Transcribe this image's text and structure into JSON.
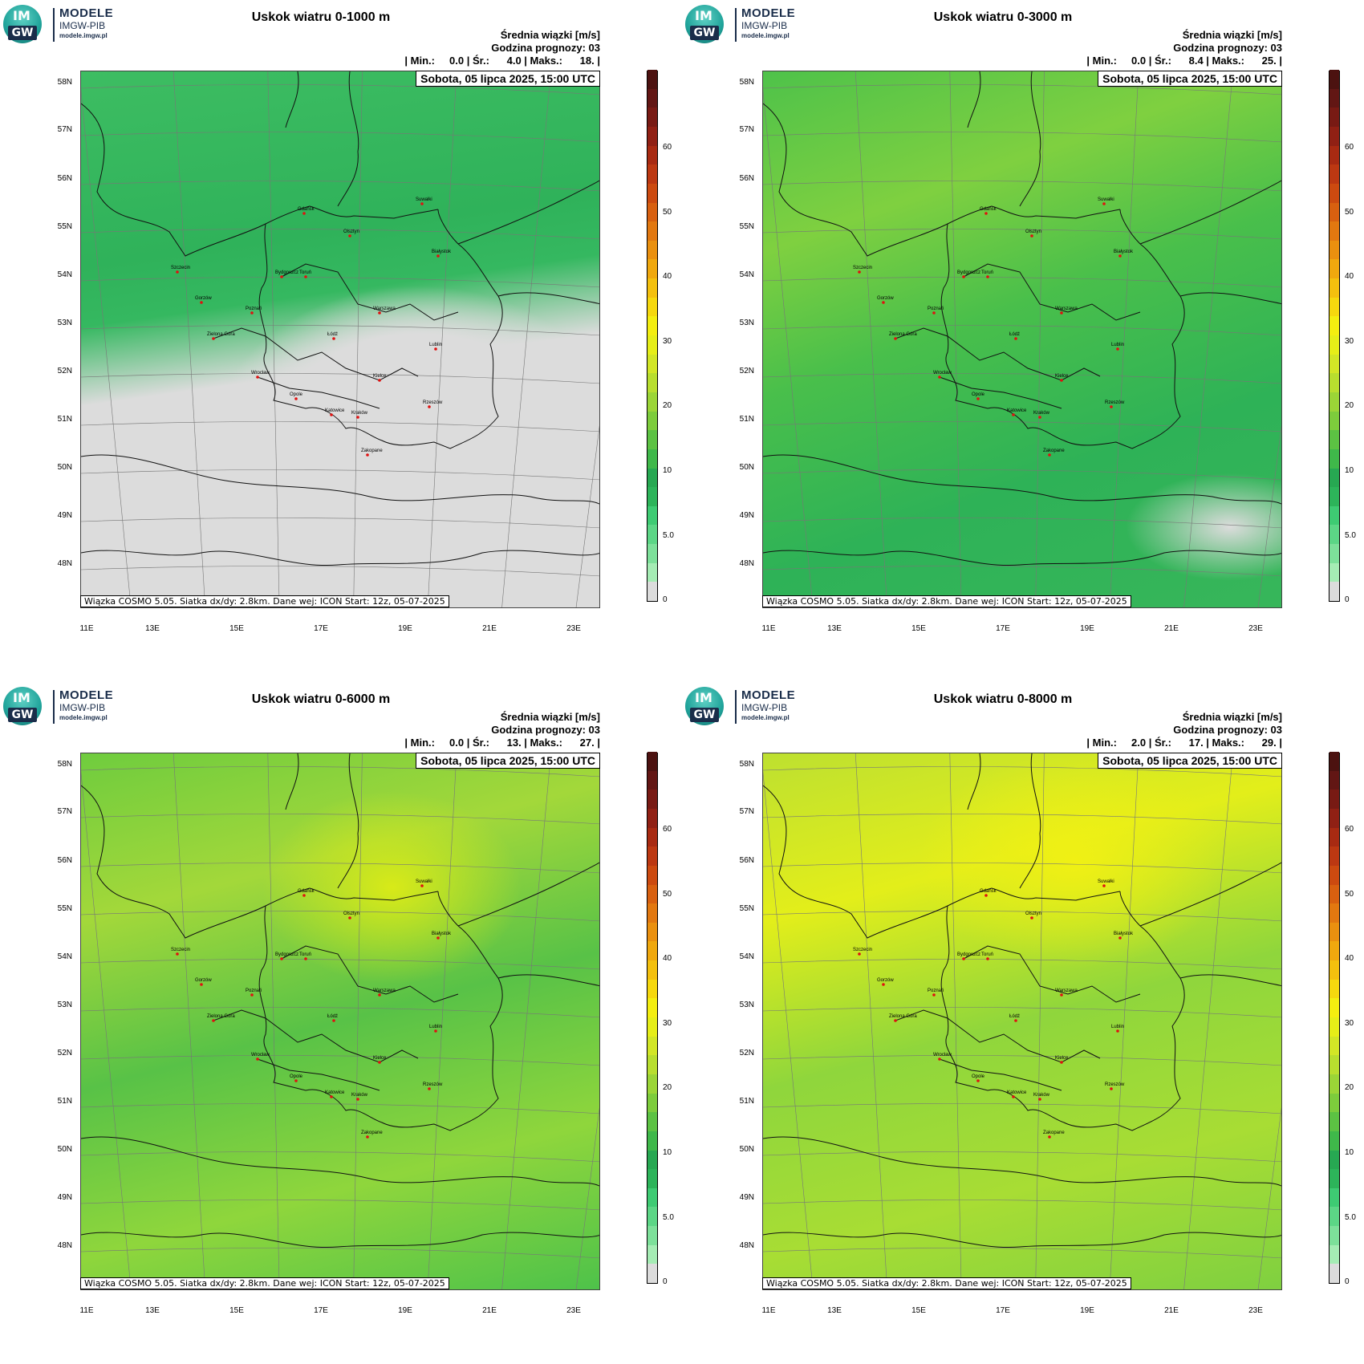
{
  "logo": {
    "circle_top": "IM",
    "circle_bottom": "GW",
    "line1": "MODELE",
    "line2": "IMGW-PIB",
    "line3": "modele.imgw.pl"
  },
  "colors": {
    "gray": "#dcdcdc",
    "green_light": "#7de09a",
    "green": "#2db45a",
    "green_mid": "#4ec24a",
    "green_yellow": "#8fd63c",
    "yellow": "#e6f014"
  },
  "common": {
    "mean_label": "Średnia wiązki [m/s]",
    "forecast_hour": "Godzina prognozy: 03",
    "date": "Sobota, 05 lipca 2025, 15:00 UTC",
    "footer": "Wiązka COSMO 5.05. Siatka dx/dy: 2.8km. Dane wej: ICON Start: 12z, 05-07-2025",
    "lat_ticks": [
      "58N",
      "57N",
      "56N",
      "55N",
      "54N",
      "53N",
      "52N",
      "51N",
      "50N",
      "49N",
      "48N"
    ],
    "lon_ticks": [
      "11E",
      "13E",
      "15E",
      "17E",
      "19E",
      "21E",
      "23E"
    ],
    "colorbar_labels": [
      "60",
      "50",
      "40",
      "30",
      "20",
      "10",
      "5.0",
      "0"
    ],
    "cities": [
      "Gdańsk",
      "Olsztyn",
      "Suwałki",
      "Białystok",
      "Szczecin",
      "Bydgoszcz",
      "Toruń",
      "Gorzów",
      "Poznań",
      "Warszawa",
      "Zielona Góra",
      "Łódź",
      "Lublin",
      "Wrocław",
      "Kielce",
      "Opole",
      "Katowice",
      "Kraków",
      "Rzeszów",
      "Zakopane"
    ]
  },
  "panels": [
    {
      "title": "Uskok wiatru 0-1000 m",
      "stats": "| Min.:     0.0 | Śr.:      4.0 | Maks.:      18. |"
    },
    {
      "title": "Uskok wiatru 0-3000 m",
      "stats": "| Min.:     0.0 | Śr.:      8.4 | Maks.:      25. |"
    },
    {
      "title": "Uskok wiatru 0-6000 m",
      "stats": "| Min.:     0.0 | Śr.:      13. | Maks.:      27. |"
    },
    {
      "title": "Uskok wiatru 0-8000 m",
      "stats": "| Min.:     2.0 | Śr.:      17. | Maks.:      29. |"
    }
  ]
}
